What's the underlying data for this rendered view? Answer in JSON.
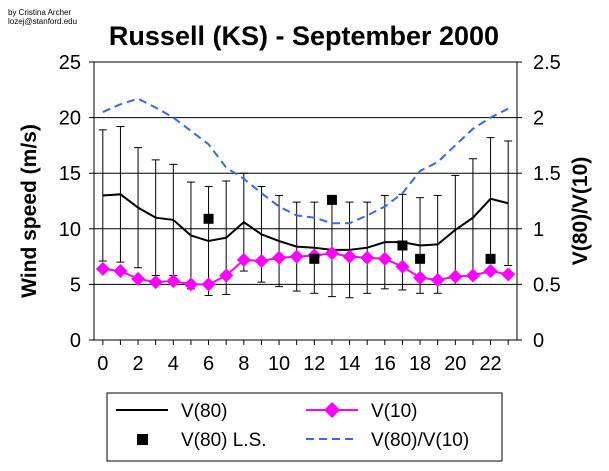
{
  "credit": [
    "by Cristina Archer",
    "lozej@stanford.edu"
  ],
  "chart_data": {
    "type": "line",
    "title": "Russell (KS) - September 2000",
    "xlabel": "",
    "ylabel": "Wind speed (m/s)",
    "y2label": "V(80)/V(10)",
    "xlim": [
      -0.5,
      23.5
    ],
    "ylim": [
      0,
      25
    ],
    "y2lim": [
      0,
      2.5
    ],
    "xticks": [
      0,
      2,
      4,
      6,
      8,
      10,
      12,
      14,
      16,
      18,
      20,
      22
    ],
    "xtick_labels": [
      "0",
      "2",
      "4",
      "6",
      "8",
      "10",
      "12",
      "14",
      "16",
      "18",
      "20",
      "22"
    ],
    "yticks": [
      0,
      5,
      10,
      15,
      20,
      25
    ],
    "ytick_labels": [
      "0",
      "5",
      "10",
      "15",
      "20",
      "25"
    ],
    "y2ticks": [
      0,
      0.5,
      1,
      1.5,
      2,
      2.5
    ],
    "y2tick_labels": [
      "0",
      "0.5",
      "1",
      "1.5",
      "2",
      "2.5"
    ],
    "grid": "horizontal",
    "legend_position": "bottom",
    "x": [
      0,
      1,
      2,
      3,
      4,
      5,
      6,
      7,
      8,
      9,
      10,
      11,
      12,
      13,
      14,
      15,
      16,
      17,
      18,
      19,
      20,
      21,
      22,
      23
    ],
    "series": [
      {
        "name": "V(80)",
        "axis": "left",
        "style": "solid",
        "color": "#000000",
        "values": [
          13.0,
          13.1,
          11.9,
          11.0,
          10.8,
          9.4,
          8.9,
          9.2,
          10.6,
          9.5,
          8.9,
          8.4,
          8.3,
          8.1,
          8.1,
          8.3,
          8.8,
          8.8,
          8.5,
          8.6,
          9.9,
          11.0,
          12.7,
          12.3
        ],
        "errors": [
          5.9,
          6.1,
          5.4,
          5.2,
          5.0,
          4.8,
          4.9,
          5.1,
          4.4,
          4.3,
          4.1,
          4.0,
          4.1,
          4.2,
          4.3,
          4.1,
          4.2,
          4.3,
          4.3,
          4.4,
          4.9,
          5.3,
          5.5,
          5.6
        ]
      },
      {
        "name": "V(10)",
        "axis": "left",
        "style": "solid-diamond",
        "color": "#FF00FF",
        "values": [
          6.4,
          6.2,
          5.5,
          5.2,
          5.3,
          5.0,
          5.0,
          5.8,
          7.2,
          7.1,
          7.4,
          7.5,
          7.6,
          7.8,
          7.5,
          7.4,
          7.3,
          6.6,
          5.6,
          5.4,
          5.7,
          5.8,
          6.2,
          5.9
        ]
      },
      {
        "name": "V(80) L.S.",
        "axis": "left",
        "style": "marker-square",
        "color": "#000000",
        "x": [
          6,
          12,
          13,
          17,
          18,
          22
        ],
        "values": [
          10.9,
          7.3,
          12.6,
          8.5,
          7.3,
          7.3
        ]
      },
      {
        "name": "V(80)/V(10)",
        "axis": "right",
        "style": "dashed",
        "color": "#3366FF",
        "values": [
          2.05,
          2.12,
          2.17,
          2.09,
          2.0,
          1.88,
          1.76,
          1.55,
          1.45,
          1.32,
          1.2,
          1.12,
          1.1,
          1.05,
          1.05,
          1.12,
          1.2,
          1.32,
          1.52,
          1.6,
          1.75,
          1.9,
          2.0,
          2.08
        ]
      }
    ]
  }
}
